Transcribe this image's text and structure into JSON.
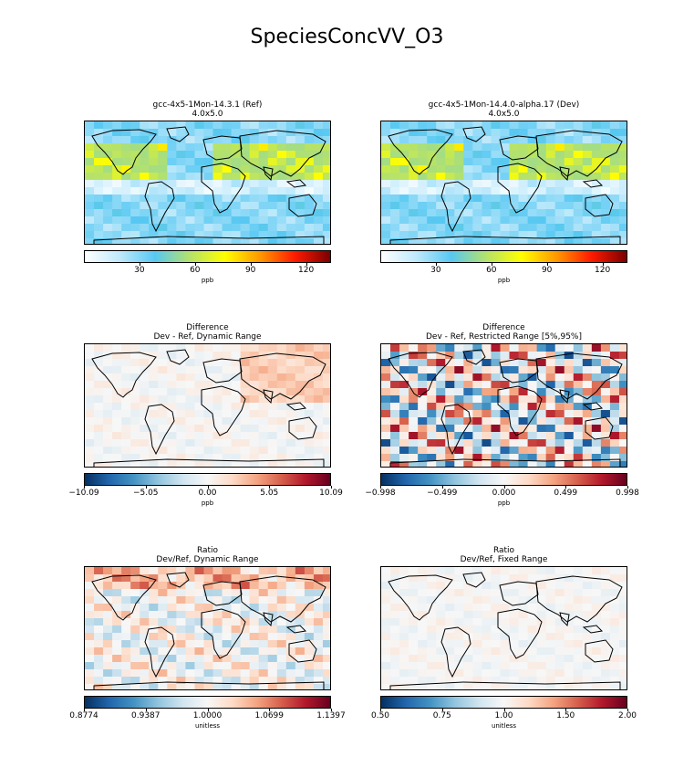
{
  "suptitle": "SpeciesConcVV_O3",
  "panels": [
    {
      "id": "ref",
      "title1": "gcc-4x5-1Mon-14.3.1 (Ref)",
      "title2": "4.0x5.0",
      "cmap": "wysiwyg",
      "ticks": [
        "30",
        "60",
        "90",
        "120"
      ],
      "unit": "ppb"
    },
    {
      "id": "dev",
      "title1": "gcc-4x5-1Mon-14.4.0-alpha.17 (Dev)",
      "title2": "4.0x5.0",
      "cmap": "wysiwyg",
      "ticks": [
        "30",
        "60",
        "90",
        "120"
      ],
      "unit": "ppb"
    },
    {
      "id": "diff-dyn",
      "title1": "Difference",
      "title2": "Dev - Ref, Dynamic Range",
      "cmap": "RdBu_r",
      "ticks": [
        "−10.09",
        "−5.05",
        "0.00",
        "5.05",
        "10.09"
      ],
      "unit": "ppb"
    },
    {
      "id": "diff-res",
      "title1": "Difference",
      "title2": "Dev - Ref, Restricted Range [5%,95%]",
      "cmap": "RdBu_r",
      "ticks": [
        "−0.998",
        "−0.499",
        "0.000",
        "0.499",
        "0.998"
      ],
      "unit": "ppb"
    },
    {
      "id": "ratio-dyn",
      "title1": "Ratio",
      "title2": "Dev/Ref, Dynamic Range",
      "cmap": "RdBu_r",
      "ticks": [
        "0.8774",
        "0.9387",
        "1.0000",
        "1.0699",
        "1.1397"
      ],
      "unit": "unitless"
    },
    {
      "id": "ratio-fix",
      "title1": "Ratio",
      "title2": "Dev/Ref, Fixed Range",
      "cmap": "RdBu_r",
      "ticks": [
        "0.50",
        "0.75",
        "1.00",
        "1.50",
        "2.00"
      ],
      "unit": "unitless"
    }
  ],
  "colors": {
    "wysiwyg": [
      "#ffffff",
      "#bfe9fb",
      "#57c8f2",
      "#b5e26a",
      "#ffff00",
      "#ff9900",
      "#ff1a00",
      "#7a0000"
    ],
    "RdBu_r": [
      "#053061",
      "#2166ac",
      "#4393c3",
      "#92c5de",
      "#d1e5f0",
      "#f7f7f7",
      "#fddbc7",
      "#f4a582",
      "#d6604d",
      "#b2182b",
      "#67001f"
    ],
    "land_outline": "#000000"
  }
}
